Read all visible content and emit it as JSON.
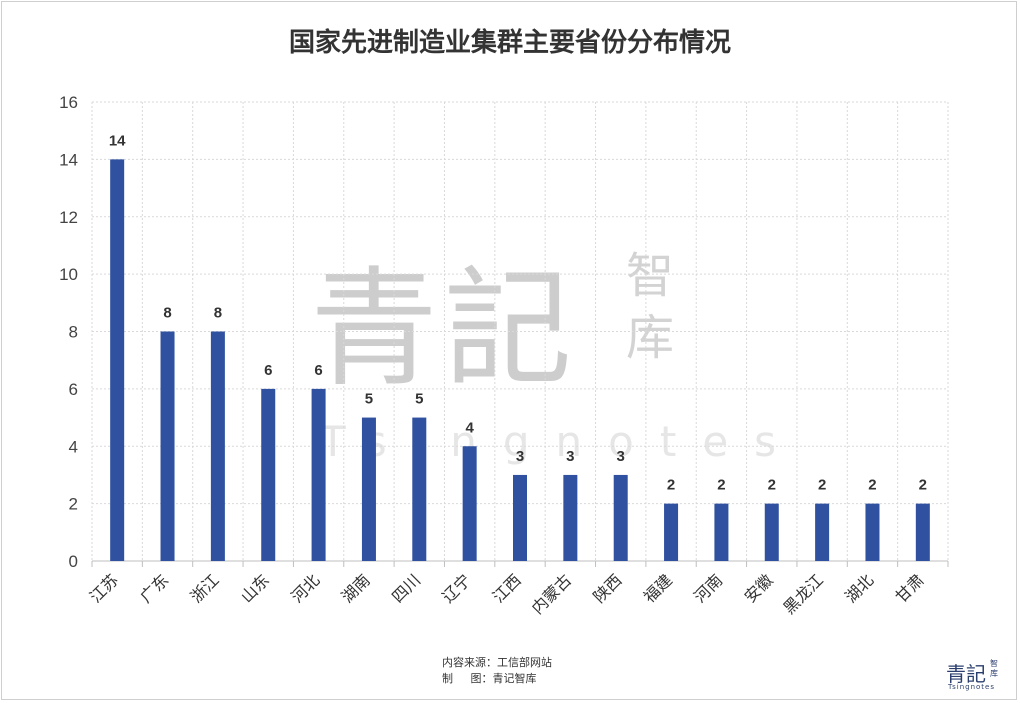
{
  "chart_data": {
    "type": "bar",
    "title": "国家先进制造业集群主要省份分布情况",
    "xlabel": "",
    "ylabel": "",
    "categories": [
      "江苏",
      "广东",
      "浙江",
      "山东",
      "河北",
      "湖南",
      "四川",
      "辽宁",
      "江西",
      "内蒙古",
      "陕西",
      "福建",
      "河南",
      "安徽",
      "黑龙江",
      "湖北",
      "甘肃"
    ],
    "values": [
      14,
      8,
      8,
      6,
      6,
      5,
      5,
      4,
      3,
      3,
      3,
      2,
      2,
      2,
      2,
      2,
      2
    ],
    "ylim": [
      0,
      16
    ],
    "yticks": [
      0,
      2,
      4,
      6,
      8,
      10,
      12,
      14,
      16
    ],
    "grid": true,
    "data_labels": true,
    "bar_color": "#2f51a0"
  },
  "watermark": {
    "main": "青記",
    "side": "智库",
    "latin": "Tsingnotes"
  },
  "footer": {
    "source": "内容来源：工信部网站",
    "maker": "制     图：青记智库"
  },
  "logo": {
    "main": "青記",
    "side": "智库",
    "latin": "Tsingnotes"
  }
}
